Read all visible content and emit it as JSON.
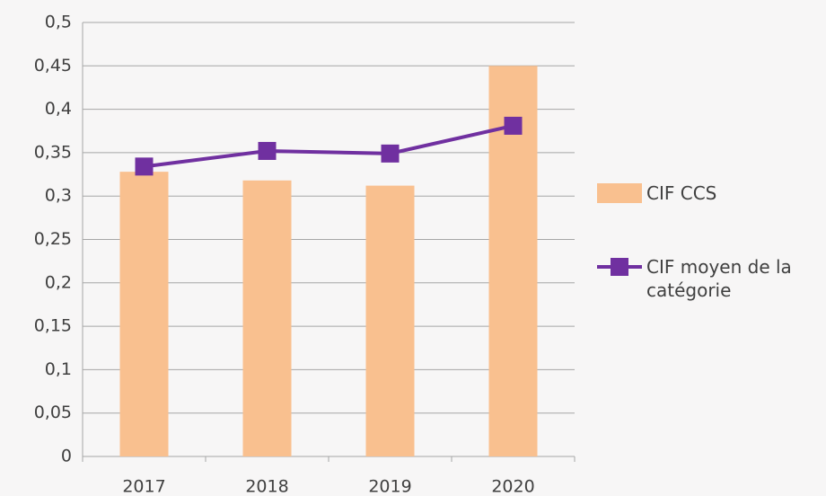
{
  "chart_data": {
    "type": "combo",
    "categories": [
      "2017",
      "2018",
      "2019",
      "2020"
    ],
    "series": [
      {
        "name": "CIF CCS",
        "type": "bar",
        "color": "#f9c08f",
        "values": [
          0.328,
          0.318,
          0.312,
          0.45
        ]
      },
      {
        "name": "CIF moyen de la catégorie",
        "type": "line",
        "color": "#7030a0",
        "values": [
          0.334,
          0.352,
          0.349,
          0.381
        ]
      }
    ],
    "ylim": [
      0,
      0.5
    ],
    "yticks": [
      0,
      {
        "value": 0.05,
        "label": "0,05"
      },
      {
        "value": 0.1,
        "label": "0,1"
      },
      {
        "value": 0.15,
        "label": "0,15"
      },
      {
        "value": 0.2,
        "label": "0,2"
      },
      {
        "value": 0.25,
        "label": "0,25"
      },
      {
        "value": 0.3,
        "label": "0,3"
      },
      {
        "value": 0.35,
        "label": "0,35"
      },
      {
        "value": 0.4,
        "label": "0,4"
      },
      {
        "value": 0.45,
        "label": "0,45"
      },
      {
        "value": 0.5,
        "label": "0,5"
      }
    ],
    "grid": true,
    "legend": "right"
  }
}
